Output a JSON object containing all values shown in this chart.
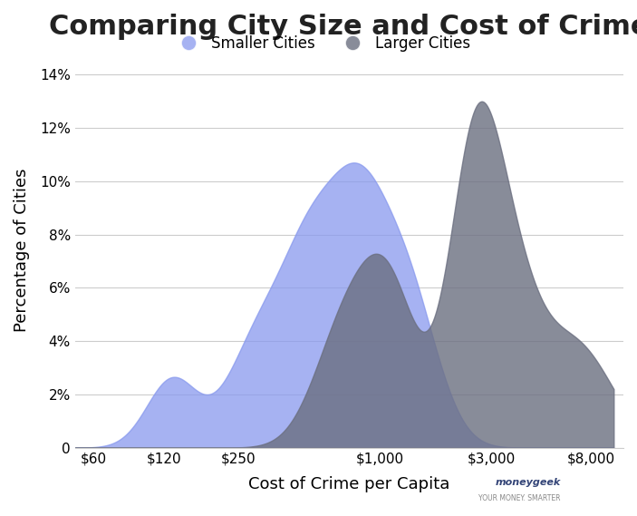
{
  "title": "Comparing City Size and Cost of Crime",
  "xlabel": "Cost of Crime per Capita",
  "ylabel": "Percentage of Cities",
  "xtick_labels": [
    "$60",
    "$120",
    "$250",
    "$1,000",
    "$3,000",
    "$8,000"
  ],
  "xtick_positions": [
    60,
    120,
    250,
    1000,
    3000,
    8000
  ],
  "ytick_labels": [
    "0",
    "2%",
    "4%",
    "6%",
    "8%",
    "10%",
    "12%",
    "14%"
  ],
  "ytick_positions": [
    0,
    0.02,
    0.04,
    0.06,
    0.08,
    0.1,
    0.12,
    0.14
  ],
  "smaller_color": "#8899ee",
  "larger_color": "#6b6f80",
  "background_color": "#ffffff",
  "title_fontsize": 22,
  "label_fontsize": 13,
  "legend_fontsize": 12,
  "smaller_cities_label": "Smaller Cities",
  "larger_cities_label": "Larger Cities",
  "smaller_alpha": 0.75,
  "larger_alpha": 0.8,
  "smaller_kde_mean": 5.8,
  "smaller_kde_std": 0.65,
  "larger_kde_mean": 7.2,
  "larger_kde_std": 0.65
}
